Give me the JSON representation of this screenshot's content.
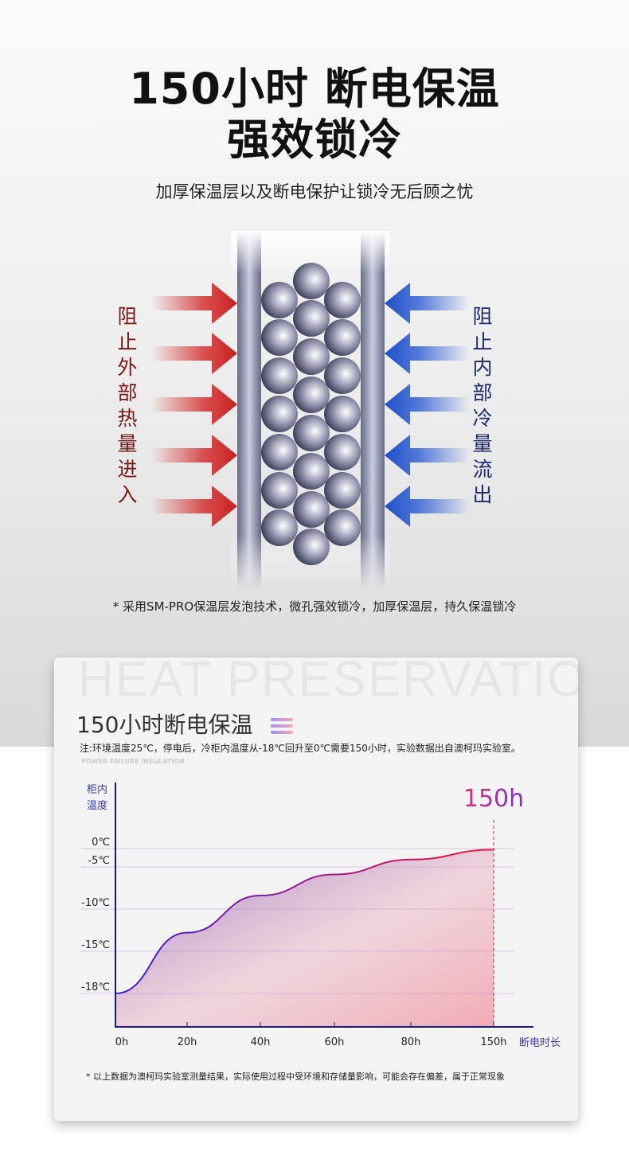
{
  "headline": {
    "line1": "150小时 断电保温",
    "line2": "强效锁冷",
    "subtitle": "加厚保温层以及断电保护让锁冷无后顾之忧"
  },
  "diagram": {
    "left_label": "阻止外部热量进入",
    "right_label": "阻止内部冷量流出",
    "left_color": "#7a1818",
    "right_color": "#1f2a70",
    "note": "* 采用SM-PRO保温层发泡技术，微孔强效锁冷，加厚保温层，持久保温锁冷"
  },
  "card": {
    "watermark": "HEAT PRESERVATION",
    "title": "150小时断电保温",
    "note": "注:环境温度25℃，停电后，冷柜内温度从-18℃回升至0℃需要150小时，实验数据出自澳柯玛实验室。",
    "en_caption": "POWER FAILURE INSULATION",
    "footnote": "* 以上数据为澳柯玛实验室测量结果，实际使用过程中受环境和存储量影响，可能会存在偏差，属于正常现象"
  },
  "chart_data": {
    "type": "area",
    "ylabel": "柜内温度",
    "xlabel": "断电时长",
    "x_ticks": [
      "0h",
      "20h",
      "40h",
      "60h",
      "80h",
      "150h"
    ],
    "y_ticks": [
      "0℃",
      "-5℃",
      "-10℃",
      "-15℃",
      "-18℃"
    ],
    "y_values": [
      0,
      -5,
      -10,
      -15,
      -18
    ],
    "annotation": "150h",
    "series": [
      {
        "x": [
          "0h",
          "20h",
          "40h",
          "60h",
          "80h",
          "150h"
        ],
        "values": [
          -18,
          -12.8,
          -8.4,
          -5.9,
          -3,
          -0.3
        ]
      }
    ],
    "line_gradient": [
      "#3a1de0",
      "#f01a3a"
    ]
  }
}
